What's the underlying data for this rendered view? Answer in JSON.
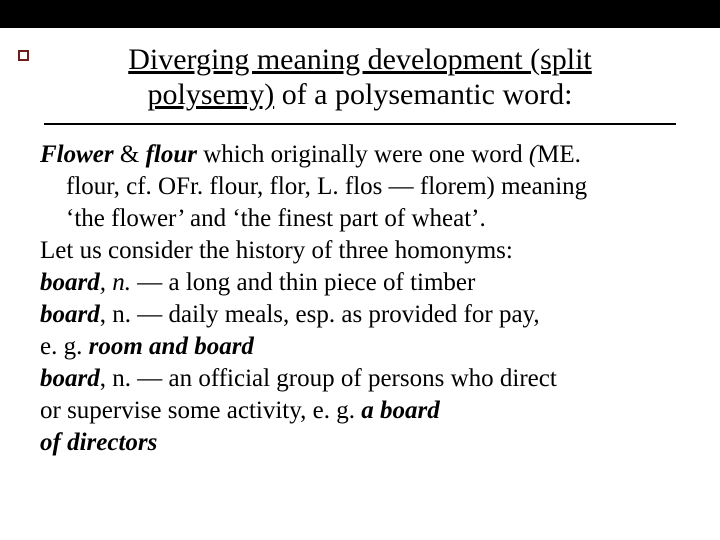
{
  "colors": {
    "background": "#ffffff",
    "top_band": "#000000",
    "text": "#000000",
    "rule": "#000000",
    "bullet_border": "#6b1d1d"
  },
  "typography": {
    "family": "Times New Roman",
    "title_size_pt": 30,
    "body_size_pt": 25
  },
  "title": {
    "underlined1": "Diverging meaning development (split",
    "underlined2": "polysemy)",
    "plain2": " of a polysemantic word:"
  },
  "body": {
    "l1_a": "Flower",
    "l1_b": " & ",
    "l1_c": "flour",
    "l1_d": " which originally were one word ",
    "l1_e": "(",
    "l1_f": "ME. ",
    "l2_a": "flour, cf. OFr. flour, flor, L. flos — florem) meaning ",
    "l3": "‘the flower’ and ‘the finest part of wheat’.",
    "l4": "Let us consider the history of three homonyms:",
    "l5_a": "board",
    "l5_b": ", ",
    "l5_c": "n.",
    "l5_d": " — a long and thin piece of timber",
    "l6_a": "board",
    "l6_b": ", n. — daily meals, esp. as provided for pay,",
    "l7_a": "e. g. ",
    "l7_b": "room and board",
    "l8_a": "board",
    "l8_b": ", n. — an official group of persons who direct ",
    "l9_a": "or supervise some activity, e. g. ",
    "l9_b": "a board",
    "l10": "of directors"
  }
}
